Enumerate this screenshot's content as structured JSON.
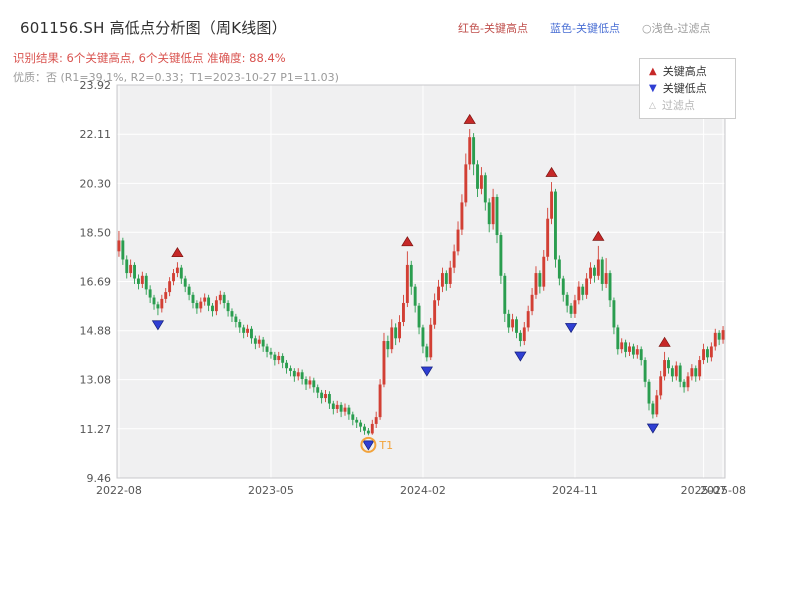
{
  "header": {
    "title": "601156.SH 高低点分析图（周K线图）",
    "legend_top": [
      {
        "label": "红色-关键高点",
        "color": "#c0504d"
      },
      {
        "label": "蓝色-关键低点",
        "color": "#4a6fd4"
      },
      {
        "label": "○浅色-过滤点",
        "color": "#999999"
      }
    ],
    "result_line": "识别结果: 6个关键高点, 6个关键低点  准确度: 88.4%",
    "result_color": "#d9534f",
    "quality_line": "优质：否 (R1=39.1%, R2=0.33；T1=2023-10-27 P1=11.03)"
  },
  "legend_box": {
    "items": [
      {
        "symbol": "▲",
        "label": "关键高点",
        "color": "#c62828"
      },
      {
        "symbol": "▼",
        "label": "关键低点",
        "color": "#2f3fd3"
      },
      {
        "symbol": "△",
        "label": "过滤点",
        "color": "#b5b5b5"
      }
    ]
  },
  "chart_data": {
    "type": "candlestick",
    "title": "601156.SH 高低点分析图（周K线图）",
    "frequency": "weekly",
    "ylim": [
      9.46,
      23.92
    ],
    "y_ticks": [
      "9.46",
      "11.27",
      "13.08",
      "14.88",
      "16.69",
      "18.50",
      "20.30",
      "22.11",
      "23.92"
    ],
    "x_ticks": [
      {
        "week": 0,
        "label": "2022-08"
      },
      {
        "week": 39,
        "label": "2023-05"
      },
      {
        "week": 78,
        "label": "2024-02"
      },
      {
        "week": 117,
        "label": "2024-11"
      },
      {
        "week": 150,
        "label": "2025-07"
      },
      {
        "week": 155,
        "label": "2025-08"
      }
    ],
    "plot_bg": "#f0f0f1",
    "grid_color": "#ffffff",
    "border_color": "#c9c9cc",
    "axis_label_color": "#555555",
    "up_color": "#d23f34",
    "down_color": "#2a9d4f",
    "key_high_color": "#c62828",
    "key_low_color": "#2f3fd3",
    "t1_color": "#f2a33c",
    "candles": [
      [
        17.8,
        18.55,
        17.6,
        18.2
      ],
      [
        18.2,
        18.3,
        17.3,
        17.5
      ],
      [
        17.5,
        17.65,
        16.8,
        17.0
      ],
      [
        17.0,
        17.5,
        16.85,
        17.3
      ],
      [
        17.3,
        17.4,
        16.6,
        16.8
      ],
      [
        16.8,
        16.95,
        16.4,
        16.6
      ],
      [
        16.6,
        17.05,
        16.45,
        16.9
      ],
      [
        16.9,
        17.0,
        16.2,
        16.4
      ],
      [
        16.4,
        16.55,
        15.9,
        16.1
      ],
      [
        16.1,
        16.2,
        15.65,
        15.85
      ],
      [
        15.85,
        15.95,
        15.45,
        15.7
      ],
      [
        15.7,
        16.2,
        15.55,
        16.05
      ],
      [
        16.05,
        16.45,
        15.9,
        16.3
      ],
      [
        16.3,
        16.85,
        16.15,
        16.7
      ],
      [
        16.7,
        17.15,
        16.55,
        17.0
      ],
      [
        17.0,
        17.4,
        16.85,
        17.2
      ],
      [
        17.2,
        17.3,
        16.6,
        16.8
      ],
      [
        16.8,
        16.9,
        16.3,
        16.5
      ],
      [
        16.5,
        16.6,
        16.0,
        16.2
      ],
      [
        16.2,
        16.3,
        15.7,
        15.9
      ],
      [
        15.9,
        16.0,
        15.5,
        15.7
      ],
      [
        15.7,
        16.1,
        15.55,
        15.95
      ],
      [
        15.95,
        16.25,
        15.8,
        16.1
      ],
      [
        16.1,
        16.2,
        15.6,
        15.8
      ],
      [
        15.8,
        15.9,
        15.4,
        15.6
      ],
      [
        15.6,
        16.15,
        15.45,
        16.0
      ],
      [
        16.0,
        16.35,
        15.85,
        16.2
      ],
      [
        16.2,
        16.3,
        15.7,
        15.9
      ],
      [
        15.9,
        16.0,
        15.4,
        15.6
      ],
      [
        15.6,
        15.7,
        15.2,
        15.4
      ],
      [
        15.4,
        15.5,
        15.0,
        15.2
      ],
      [
        15.2,
        15.3,
        14.8,
        15.0
      ],
      [
        15.0,
        15.1,
        14.6,
        14.8
      ],
      [
        14.8,
        15.1,
        14.65,
        14.95
      ],
      [
        14.95,
        15.05,
        14.4,
        14.6
      ],
      [
        14.6,
        14.7,
        14.2,
        14.4
      ],
      [
        14.4,
        14.7,
        14.25,
        14.55
      ],
      [
        14.55,
        14.65,
        14.1,
        14.3
      ],
      [
        14.3,
        14.4,
        13.9,
        14.1
      ],
      [
        14.1,
        14.25,
        13.85,
        14.0
      ],
      [
        14.0,
        14.1,
        13.6,
        13.8
      ],
      [
        13.8,
        14.1,
        13.65,
        13.95
      ],
      [
        13.95,
        14.05,
        13.5,
        13.7
      ],
      [
        13.7,
        13.8,
        13.3,
        13.5
      ],
      [
        13.5,
        13.6,
        13.2,
        13.4
      ],
      [
        13.4,
        13.5,
        13.0,
        13.2
      ],
      [
        13.2,
        13.5,
        13.05,
        13.35
      ],
      [
        13.35,
        13.45,
        12.9,
        13.1
      ],
      [
        13.1,
        13.2,
        12.7,
        12.9
      ],
      [
        12.9,
        13.2,
        12.75,
        13.05
      ],
      [
        13.05,
        13.15,
        12.6,
        12.8
      ],
      [
        12.8,
        12.9,
        12.4,
        12.6
      ],
      [
        12.6,
        12.7,
        12.2,
        12.4
      ],
      [
        12.4,
        12.7,
        12.25,
        12.55
      ],
      [
        12.55,
        12.65,
        12.0,
        12.2
      ],
      [
        12.2,
        12.3,
        11.8,
        12.0
      ],
      [
        12.0,
        12.3,
        11.85,
        12.15
      ],
      [
        12.15,
        12.25,
        11.7,
        11.9
      ],
      [
        11.9,
        12.2,
        11.75,
        12.05
      ],
      [
        12.05,
        12.15,
        11.6,
        11.8
      ],
      [
        11.8,
        11.9,
        11.4,
        11.6
      ],
      [
        11.6,
        11.7,
        11.3,
        11.5
      ],
      [
        11.5,
        11.6,
        11.15,
        11.35
      ],
      [
        11.35,
        11.45,
        11.05,
        11.2
      ],
      [
        11.2,
        11.3,
        11.03,
        11.1
      ],
      [
        11.1,
        11.6,
        11.05,
        11.45
      ],
      [
        11.45,
        11.9,
        11.3,
        11.7
      ],
      [
        11.7,
        13.1,
        11.6,
        12.9
      ],
      [
        12.9,
        14.8,
        12.8,
        14.5
      ],
      [
        14.5,
        14.7,
        13.9,
        14.2
      ],
      [
        14.2,
        15.3,
        14.05,
        15.0
      ],
      [
        15.0,
        15.15,
        14.35,
        14.6
      ],
      [
        14.6,
        15.45,
        14.45,
        15.2
      ],
      [
        15.2,
        16.2,
        15.05,
        15.9
      ],
      [
        15.9,
        17.8,
        15.75,
        17.3
      ],
      [
        17.3,
        17.45,
        16.2,
        16.5
      ],
      [
        16.5,
        16.6,
        15.55,
        15.8
      ],
      [
        15.8,
        15.9,
        14.75,
        15.0
      ],
      [
        15.0,
        15.1,
        14.05,
        14.3
      ],
      [
        14.3,
        14.4,
        13.75,
        13.9
      ],
      [
        13.9,
        15.35,
        13.8,
        15.1
      ],
      [
        15.1,
        16.25,
        14.95,
        16.0
      ],
      [
        16.0,
        16.75,
        15.8,
        16.5
      ],
      [
        16.5,
        17.2,
        16.3,
        17.0
      ],
      [
        17.0,
        17.1,
        16.35,
        16.6
      ],
      [
        16.6,
        17.45,
        16.45,
        17.2
      ],
      [
        17.2,
        18.05,
        17.0,
        17.8
      ],
      [
        17.8,
        18.9,
        17.65,
        18.6
      ],
      [
        18.6,
        19.9,
        18.4,
        19.6
      ],
      [
        19.6,
        21.4,
        19.45,
        21.0
      ],
      [
        21.0,
        22.3,
        20.8,
        22.0
      ],
      [
        22.0,
        22.15,
        20.6,
        21.0
      ],
      [
        21.0,
        21.15,
        19.8,
        20.1
      ],
      [
        20.1,
        20.9,
        19.9,
        20.6
      ],
      [
        20.6,
        20.7,
        19.3,
        19.6
      ],
      [
        19.6,
        19.75,
        18.5,
        18.8
      ],
      [
        18.8,
        20.1,
        18.6,
        19.8
      ],
      [
        19.8,
        19.9,
        18.1,
        18.4
      ],
      [
        18.4,
        18.5,
        16.6,
        16.9
      ],
      [
        16.9,
        17.0,
        15.2,
        15.5
      ],
      [
        15.5,
        15.65,
        14.8,
        15.0
      ],
      [
        15.0,
        15.5,
        14.85,
        15.3
      ],
      [
        15.3,
        15.4,
        14.6,
        14.8
      ],
      [
        14.8,
        14.9,
        14.3,
        14.5
      ],
      [
        14.5,
        15.2,
        14.35,
        15.0
      ],
      [
        15.0,
        15.8,
        14.85,
        15.6
      ],
      [
        15.6,
        16.45,
        15.45,
        16.2
      ],
      [
        16.2,
        17.25,
        16.05,
        17.0
      ],
      [
        17.0,
        17.1,
        16.25,
        16.5
      ],
      [
        16.5,
        17.85,
        16.35,
        17.6
      ],
      [
        17.6,
        19.4,
        17.45,
        19.0
      ],
      [
        19.0,
        20.35,
        18.8,
        20.0
      ],
      [
        20.0,
        20.1,
        17.2,
        17.5
      ],
      [
        17.5,
        17.65,
        16.55,
        16.8
      ],
      [
        16.8,
        16.9,
        15.95,
        16.2
      ],
      [
        16.2,
        16.3,
        15.55,
        15.8
      ],
      [
        15.8,
        15.9,
        15.35,
        15.5
      ],
      [
        15.5,
        16.2,
        15.35,
        16.0
      ],
      [
        16.0,
        16.7,
        15.85,
        16.5
      ],
      [
        16.5,
        16.6,
        16.0,
        16.2
      ],
      [
        16.2,
        17.0,
        16.05,
        16.8
      ],
      [
        16.8,
        17.4,
        16.6,
        17.2
      ],
      [
        17.2,
        17.3,
        16.65,
        16.9
      ],
      [
        16.9,
        18.0,
        16.75,
        17.5
      ],
      [
        17.5,
        17.6,
        16.35,
        16.6
      ],
      [
        16.6,
        17.55,
        16.45,
        17.0
      ],
      [
        17.0,
        17.1,
        15.75,
        16.0
      ],
      [
        16.0,
        16.1,
        14.75,
        15.0
      ],
      [
        15.0,
        15.1,
        14.0,
        14.2
      ],
      [
        14.2,
        14.6,
        14.05,
        14.45
      ],
      [
        14.45,
        14.55,
        13.9,
        14.1
      ],
      [
        14.1,
        14.45,
        13.95,
        14.3
      ],
      [
        14.3,
        14.4,
        13.85,
        14.0
      ],
      [
        14.0,
        14.35,
        13.85,
        14.2
      ],
      [
        14.2,
        14.3,
        13.6,
        13.8
      ],
      [
        13.8,
        13.9,
        12.8,
        13.0
      ],
      [
        13.0,
        13.1,
        11.95,
        12.2
      ],
      [
        12.2,
        12.3,
        11.65,
        11.8
      ],
      [
        11.8,
        12.7,
        11.7,
        12.5
      ],
      [
        12.5,
        13.4,
        12.35,
        13.2
      ],
      [
        13.2,
        14.1,
        13.05,
        13.8
      ],
      [
        13.8,
        13.9,
        13.3,
        13.5
      ],
      [
        13.5,
        13.6,
        13.0,
        13.2
      ],
      [
        13.2,
        13.75,
        13.05,
        13.6
      ],
      [
        13.6,
        13.7,
        12.8,
        13.0
      ],
      [
        13.0,
        13.1,
        12.6,
        12.8
      ],
      [
        12.8,
        13.35,
        12.65,
        13.2
      ],
      [
        13.2,
        13.65,
        13.05,
        13.5
      ],
      [
        13.5,
        13.6,
        13.0,
        13.2
      ],
      [
        13.2,
        13.95,
        13.05,
        13.8
      ],
      [
        13.8,
        14.4,
        13.65,
        14.2
      ],
      [
        14.2,
        14.3,
        13.7,
        13.9
      ],
      [
        13.9,
        14.45,
        13.75,
        14.3
      ],
      [
        14.3,
        14.95,
        14.15,
        14.8
      ],
      [
        14.8,
        14.9,
        14.35,
        14.55
      ],
      [
        14.55,
        15.05,
        14.4,
        14.9
      ]
    ],
    "key_highs": [
      {
        "week": 15,
        "price": 17.75
      },
      {
        "week": 74,
        "price": 18.15
      },
      {
        "week": 90,
        "price": 22.65
      },
      {
        "week": 111,
        "price": 20.7
      },
      {
        "week": 123,
        "price": 18.35
      },
      {
        "week": 140,
        "price": 14.45
      }
    ],
    "key_lows": [
      {
        "week": 10,
        "price": 15.1
      },
      {
        "week": 64,
        "price": 10.68
      },
      {
        "week": 79,
        "price": 13.4
      },
      {
        "week": 103,
        "price": 13.95
      },
      {
        "week": 116,
        "price": 15.0
      },
      {
        "week": 137,
        "price": 11.3
      }
    ],
    "t1_marker": {
      "week": 64,
      "price": 10.68,
      "label": "T1"
    }
  }
}
